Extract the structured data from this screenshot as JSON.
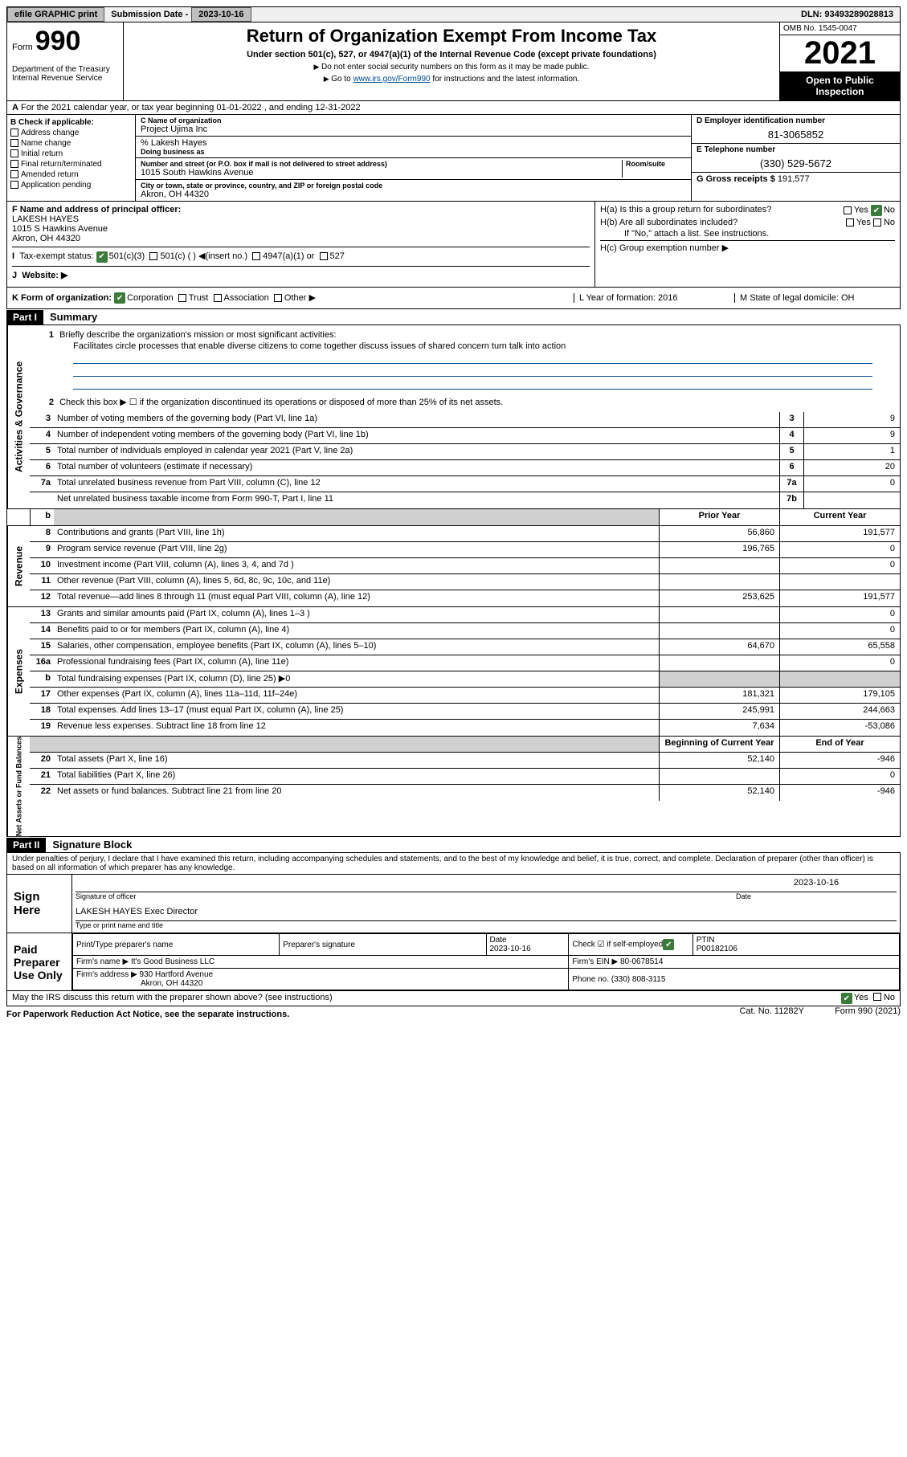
{
  "topbar": {
    "efile": "efile GRAPHIC print",
    "subdate_label": "Submission Date - ",
    "subdate": "2023-10-16",
    "dln_label": "DLN: ",
    "dln": "93493289028813"
  },
  "header": {
    "form_label": "Form",
    "form_num": "990",
    "dept": "Department of the Treasury\nInternal Revenue Service",
    "title": "Return of Organization Exempt From Income Tax",
    "sub": "Under section 501(c), 527, or 4947(a)(1) of the Internal Revenue Code (except private foundations)",
    "instr1": "Do not enter social security numbers on this form as it may be made public.",
    "instr2_pre": "Go to ",
    "instr2_link": "www.irs.gov/Form990",
    "instr2_post": " for instructions and the latest information.",
    "omb": "OMB No. 1545-0047",
    "year": "2021",
    "open": "Open to Public Inspection"
  },
  "rowA": "For the 2021 calendar year, or tax year beginning 01-01-2022   , and ending 12-31-2022",
  "b": {
    "hdr": "B Check if applicable:",
    "items": [
      "Address change",
      "Name change",
      "Initial return",
      "Final return/terminated",
      "Amended return",
      "Application pending"
    ]
  },
  "c": {
    "name_label": "C Name of organization",
    "name": "Project Ujima Inc",
    "care_label": "% Lakesh Hayes",
    "dba_label": "Doing business as",
    "street_label": "Number and street (or P.O. box if mail is not delivered to street address)",
    "room_label": "Room/suite",
    "street": "1015 South Hawkins Avenue",
    "city_label": "City or town, state or province, country, and ZIP or foreign postal code",
    "city": "Akron, OH  44320"
  },
  "d": {
    "label": "D Employer identification number",
    "val": "81-3065852"
  },
  "e": {
    "label": "E Telephone number",
    "val": "(330) 529-5672"
  },
  "g": {
    "label": "G Gross receipts $ ",
    "val": "191,577"
  },
  "f": {
    "label": "F  Name and address of principal officer:",
    "name": "LAKESH HAYES",
    "addr1": "1015 S Hawkins Avenue",
    "addr2": "Akron, OH  44320"
  },
  "h": {
    "a": "H(a)  Is this a group return for subordinates?",
    "a_no": "No",
    "b": "H(b)  Are all subordinates included?",
    "b_note": "If \"No,\" attach a list. See instructions.",
    "c": "H(c)  Group exemption number ▶"
  },
  "i": {
    "label": "Tax-exempt status:",
    "opts": [
      "501(c)(3)",
      "501(c) (  ) ◀(insert no.)",
      "4947(a)(1) or",
      "527"
    ]
  },
  "j": "Website: ▶",
  "k": {
    "label": "K Form of organization:",
    "opts": [
      "Corporation",
      "Trust",
      "Association",
      "Other ▶"
    ],
    "l": "L Year of formation: 2016",
    "m": "M State of legal domicile: OH"
  },
  "part1": {
    "hdr": "Part I",
    "sub": "Summary",
    "l1": "Briefly describe the organization's mission or most significant activities:",
    "l1_text": "Facilitates circle processes that enable diverse citizens to come together discuss issues of shared concern turn talk into action",
    "l2": "Check this box ▶ ☐ if the organization discontinued its operations or disposed of more than 25% of its net assets.",
    "lines_gov": [
      {
        "no": "3",
        "text": "Number of voting members of the governing body (Part VI, line 1a)",
        "box": "3",
        "val": "9"
      },
      {
        "no": "4",
        "text": "Number of independent voting members of the governing body (Part VI, line 1b)",
        "box": "4",
        "val": "9"
      },
      {
        "no": "5",
        "text": "Total number of individuals employed in calendar year 2021 (Part V, line 2a)",
        "box": "5",
        "val": "1"
      },
      {
        "no": "6",
        "text": "Total number of volunteers (estimate if necessary)",
        "box": "6",
        "val": "20"
      },
      {
        "no": "7a",
        "text": "Total unrelated business revenue from Part VIII, column (C), line 12",
        "box": "7a",
        "val": "0"
      },
      {
        "no": "",
        "text": "Net unrelated business taxable income from Form 990-T, Part I, line 11",
        "box": "7b",
        "val": ""
      }
    ],
    "yearh_prior": "Prior Year",
    "yearh_curr": "Current Year",
    "lines_rev": [
      {
        "no": "8",
        "text": "Contributions and grants (Part VIII, line 1h)",
        "p": "56,860",
        "c": "191,577"
      },
      {
        "no": "9",
        "text": "Program service revenue (Part VIII, line 2g)",
        "p": "196,765",
        "c": "0"
      },
      {
        "no": "10",
        "text": "Investment income (Part VIII, column (A), lines 3, 4, and 7d )",
        "p": "",
        "c": "0"
      },
      {
        "no": "11",
        "text": "Other revenue (Part VIII, column (A), lines 5, 6d, 8c, 9c, 10c, and 11e)",
        "p": "",
        "c": ""
      },
      {
        "no": "12",
        "text": "Total revenue—add lines 8 through 11 (must equal Part VIII, column (A), line 12)",
        "p": "253,625",
        "c": "191,577"
      }
    ],
    "lines_exp": [
      {
        "no": "13",
        "text": "Grants and similar amounts paid (Part IX, column (A), lines 1–3 )",
        "p": "",
        "c": "0"
      },
      {
        "no": "14",
        "text": "Benefits paid to or for members (Part IX, column (A), line 4)",
        "p": "",
        "c": "0"
      },
      {
        "no": "15",
        "text": "Salaries, other compensation, employee benefits (Part IX, column (A), lines 5–10)",
        "p": "64,670",
        "c": "65,558"
      },
      {
        "no": "16a",
        "text": "Professional fundraising fees (Part IX, column (A), line 11e)",
        "p": "",
        "c": "0"
      },
      {
        "no": "b",
        "text": "Total fundraising expenses (Part IX, column (D), line 25) ▶0",
        "p": "grey",
        "c": "grey"
      },
      {
        "no": "17",
        "text": "Other expenses (Part IX, column (A), lines 11a–11d, 11f–24e)",
        "p": "181,321",
        "c": "179,105"
      },
      {
        "no": "18",
        "text": "Total expenses. Add lines 13–17 (must equal Part IX, column (A), line 25)",
        "p": "245,991",
        "c": "244,663"
      },
      {
        "no": "19",
        "text": "Revenue less expenses. Subtract line 18 from line 12",
        "p": "7,634",
        "c": "-53,086"
      }
    ],
    "yearh_beg": "Beginning of Current Year",
    "yearh_end": "End of Year",
    "lines_net": [
      {
        "no": "20",
        "text": "Total assets (Part X, line 16)",
        "p": "52,140",
        "c": "-946"
      },
      {
        "no": "21",
        "text": "Total liabilities (Part X, line 26)",
        "p": "",
        "c": "0"
      },
      {
        "no": "22",
        "text": "Net assets or fund balances. Subtract line 21 from line 20",
        "p": "52,140",
        "c": "-946"
      }
    ],
    "tabs": {
      "gov": "Activities & Governance",
      "rev": "Revenue",
      "exp": "Expenses",
      "net": "Net Assets or Fund Balances"
    }
  },
  "part2": {
    "hdr": "Part II",
    "sub": "Signature Block",
    "jurat": "Under penalties of perjury, I declare that I have examined this return, including accompanying schedules and statements, and to the best of my knowledge and belief, it is true, correct, and complete. Declaration of preparer (other than officer) is based on all information of which preparer has any knowledge.",
    "sign_here": "Sign Here",
    "sig_officer": "Signature of officer",
    "sig_date": "Date",
    "sig_date_val": "2023-10-16",
    "sig_name": "LAKESH HAYES Exec Director",
    "sig_name_sub": "Type or print name and title",
    "paid": "Paid Preparer Use Only",
    "prep_name_h": "Print/Type preparer's name",
    "prep_sig_h": "Preparer's signature",
    "prep_date_h": "Date",
    "prep_date": "2023-10-16",
    "prep_check": "Check ☑ if self-employed",
    "prep_ptin_h": "PTIN",
    "prep_ptin": "P00182106",
    "firm_name_h": "Firm's name   ▶",
    "firm_name": "It's Good Business LLC",
    "firm_ein_h": "Firm's EIN ▶",
    "firm_ein": "80-0678514",
    "firm_addr_h": "Firm's address ▶",
    "firm_addr1": "930 Hartford Avenue",
    "firm_addr2": "Akron, OH  44320",
    "firm_phone_h": "Phone no.",
    "firm_phone": "(330) 808-3115",
    "discuss": "May the IRS discuss this return with the preparer shown above? (see instructions)",
    "pwk": "For Paperwork Reduction Act Notice, see the separate instructions.",
    "cat": "Cat. No. 11282Y",
    "form": "Form 990 (2021)"
  }
}
